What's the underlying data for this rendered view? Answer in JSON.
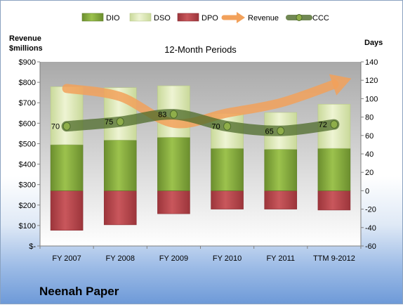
{
  "company": "Neenah Paper",
  "chart_data": {
    "type": "bar",
    "title": "12-Month Periods",
    "categories": [
      "FY 2007",
      "FY 2008",
      "FY 2009",
      "FY 2010",
      "FY 2011",
      "TTM 9-2012"
    ],
    "left_axis": {
      "label_line1": "Revenue",
      "label_line2": "$millions",
      "ylim": [
        0,
        900
      ],
      "ticks": [
        0,
        100,
        200,
        300,
        400,
        500,
        600,
        700,
        800,
        900
      ],
      "tick_labels": [
        "$-",
        "$100",
        "$200",
        "$300",
        "$400",
        "$500",
        "$600",
        "$700",
        "$800",
        "$900"
      ]
    },
    "right_axis": {
      "label": "Days",
      "ylim": [
        -60,
        140
      ],
      "ticks": [
        -60,
        -40,
        -20,
        0,
        20,
        40,
        60,
        80,
        100,
        120,
        140
      ],
      "tick_labels": [
        "-60",
        "-40",
        "-20",
        "0",
        "20",
        "40",
        "60",
        "80",
        "100",
        "120",
        "140"
      ]
    },
    "legend_position": "top",
    "series": [
      {
        "name": "DIO",
        "axis": "right",
        "kind": "stacked-bar",
        "color": "#7fa33a",
        "values": [
          50,
          55,
          58,
          46,
          45,
          46
        ]
      },
      {
        "name": "DSO",
        "axis": "right",
        "kind": "stacked-bar",
        "color": "#dfeab4",
        "values": [
          63,
          57,
          56,
          38,
          40,
          48
        ]
      },
      {
        "name": "DPO",
        "axis": "right",
        "kind": "stacked-bar",
        "color": "#b9474d",
        "values": [
          -43,
          -37,
          -25,
          -20,
          -20,
          -21
        ]
      },
      {
        "name": "Revenue",
        "axis": "left",
        "kind": "line",
        "color": "#f2a15b",
        "values": [
          770,
          730,
          600,
          650,
          700,
          790
        ]
      },
      {
        "name": "CCC",
        "axis": "right",
        "kind": "line",
        "color": "#4e6b2a",
        "values": [
          70,
          75,
          83,
          70,
          65,
          72
        ],
        "labels": [
          "70",
          "75",
          "83",
          "70",
          "65",
          "72"
        ]
      }
    ]
  }
}
